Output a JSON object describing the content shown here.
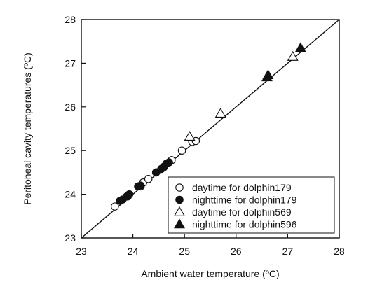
{
  "chart_data": {
    "type": "scatter",
    "xlabel": "Ambient water temperature (ºC)",
    "ylabel": "Peritoneal cavity temperatures (ºC)",
    "xlim": [
      23,
      28
    ],
    "ylim": [
      23,
      28
    ],
    "xticks": [
      23,
      24,
      25,
      26,
      27,
      28
    ],
    "yticks": [
      23,
      24,
      25,
      26,
      27,
      28
    ],
    "grid": false,
    "legend_position": "bottom-right",
    "reference_line": {
      "from": [
        23,
        23
      ],
      "to": [
        28,
        28
      ]
    },
    "series": [
      {
        "name": "daytime for dolphin179",
        "marker": "circle-open",
        "points": [
          [
            23.65,
            23.72
          ],
          [
            23.9,
            23.95
          ],
          [
            24.15,
            24.18
          ],
          [
            24.2,
            24.27
          ],
          [
            24.3,
            24.35
          ],
          [
            24.45,
            24.5
          ],
          [
            24.6,
            24.62
          ],
          [
            24.75,
            24.78
          ],
          [
            24.95,
            25.0
          ],
          [
            25.15,
            25.2
          ],
          [
            25.22,
            25.22
          ]
        ]
      },
      {
        "name": "nighttime for dolphin179",
        "marker": "circle-filled",
        "points": [
          [
            23.75,
            23.85
          ],
          [
            23.8,
            23.88
          ],
          [
            23.88,
            23.95
          ],
          [
            23.93,
            24.0
          ],
          [
            24.1,
            24.18
          ],
          [
            24.15,
            24.2
          ],
          [
            24.45,
            24.5
          ],
          [
            24.55,
            24.58
          ],
          [
            24.6,
            24.63
          ],
          [
            24.65,
            24.7
          ],
          [
            24.7,
            24.73
          ]
        ]
      },
      {
        "name": "daytime for dolphin569",
        "marker": "triangle-open",
        "points": [
          [
            25.1,
            25.32
          ],
          [
            25.7,
            25.85
          ],
          [
            27.1,
            27.15
          ]
        ]
      },
      {
        "name": "nighttime for dolphin596",
        "marker": "triangle-filled",
        "points": [
          [
            26.6,
            26.68
          ],
          [
            26.62,
            26.73
          ],
          [
            27.25,
            27.35
          ]
        ]
      }
    ]
  }
}
